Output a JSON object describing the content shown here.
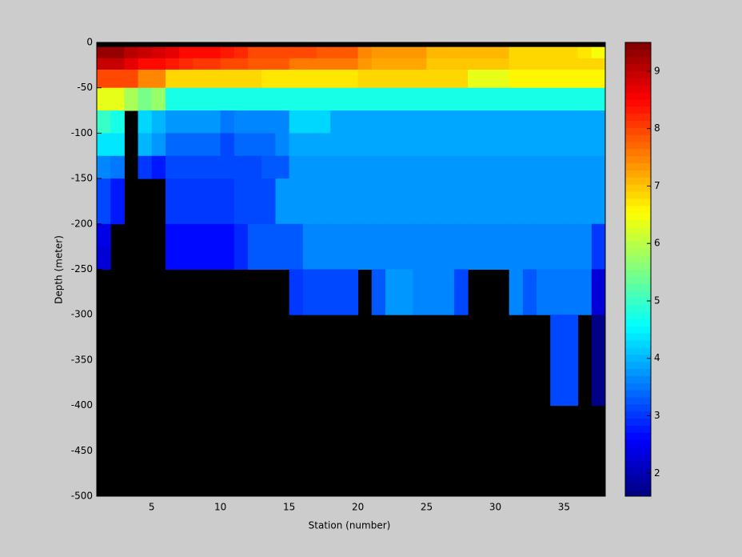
{
  "chart_data": {
    "type": "heatmap",
    "colormap": "jet",
    "x_label": "Station (number)",
    "y_label": "Depth (meter)",
    "xlim": [
      1,
      38
    ],
    "ylim": [
      -500,
      0
    ],
    "xticks": [
      5,
      10,
      15,
      20,
      25,
      30,
      35
    ],
    "yticks": [
      0,
      -50,
      -100,
      -150,
      -200,
      -250,
      -300,
      -350,
      -400,
      -450,
      -500
    ],
    "clim": [
      1.6,
      9.5
    ],
    "cticks": [
      2,
      3,
      4,
      5,
      6,
      7,
      8,
      9
    ],
    "x_edges": [
      1,
      2,
      3,
      4,
      5,
      6,
      7,
      8,
      9,
      10,
      11,
      12,
      13,
      14,
      15,
      16,
      17,
      18,
      19,
      20,
      21,
      22,
      23,
      24,
      25,
      26,
      27,
      28,
      29,
      30,
      31,
      32,
      33,
      34,
      35,
      36,
      37,
      38
    ],
    "y_edges": [
      0,
      -5,
      -17.5,
      -30,
      -50,
      -75,
      -100,
      -125,
      -150,
      -175,
      -200,
      -225,
      -250,
      -300,
      -400,
      -500
    ],
    "z": [
      [
        null,
        null,
        null,
        null,
        null,
        null,
        null,
        null,
        null,
        null,
        null,
        null,
        null,
        null,
        null,
        null,
        null,
        null,
        null,
        null,
        null,
        null,
        null,
        null,
        null,
        null,
        null,
        null,
        null,
        null,
        null,
        null,
        null,
        null,
        null,
        null,
        null
      ],
      [
        9.3,
        9.3,
        9.1,
        8.9,
        8.8,
        8.7,
        8.5,
        8.5,
        8.5,
        8.3,
        8.2,
        8.0,
        8.0,
        8.0,
        8.0,
        8.0,
        7.8,
        7.8,
        7.8,
        7.5,
        7.3,
        7.3,
        7.3,
        7.3,
        7.1,
        7.1,
        7.1,
        7.1,
        7.1,
        7.1,
        6.9,
        6.9,
        6.9,
        6.9,
        6.9,
        6.7,
        6.5
      ],
      [
        9.0,
        8.9,
        8.7,
        8.5,
        8.4,
        8.3,
        8.2,
        8.1,
        8.1,
        8.0,
        7.9,
        7.8,
        7.8,
        7.8,
        7.6,
        7.6,
        7.6,
        7.6,
        7.6,
        7.4,
        7.2,
        7.2,
        7.2,
        7.2,
        7.0,
        7.0,
        7.0,
        7.0,
        7.0,
        7.0,
        6.8,
        6.8,
        6.8,
        6.8,
        6.8,
        6.8,
        6.8
      ],
      [
        8.0,
        8.0,
        8.0,
        7.5,
        7.5,
        6.9,
        6.9,
        6.9,
        6.9,
        6.9,
        6.9,
        6.9,
        6.7,
        6.7,
        6.7,
        6.7,
        6.7,
        6.7,
        6.7,
        6.9,
        6.9,
        6.9,
        6.9,
        6.9,
        6.9,
        6.9,
        6.9,
        6.3,
        6.3,
        6.3,
        6.6,
        6.6,
        6.6,
        6.6,
        6.6,
        6.6,
        6.6
      ],
      [
        6.3,
        6.3,
        5.9,
        5.5,
        5.7,
        4.8,
        4.8,
        4.7,
        4.7,
        4.7,
        4.7,
        4.7,
        4.7,
        4.7,
        4.7,
        4.7,
        4.7,
        4.7,
        4.7,
        4.7,
        4.7,
        4.7,
        4.7,
        4.7,
        4.7,
        4.7,
        4.7,
        4.7,
        4.7,
        4.7,
        4.7,
        4.7,
        4.7,
        4.7,
        4.7,
        4.7,
        4.7
      ],
      [
        5.0,
        4.7,
        null,
        4.3,
        4.0,
        3.7,
        3.7,
        3.7,
        3.7,
        3.5,
        3.6,
        3.6,
        3.6,
        3.6,
        4.2,
        4.2,
        4.2,
        3.9,
        3.9,
        3.9,
        3.9,
        3.9,
        3.9,
        3.9,
        3.9,
        3.9,
        3.9,
        3.9,
        3.9,
        3.9,
        3.9,
        3.9,
        3.9,
        3.9,
        3.9,
        3.9,
        3.9
      ],
      [
        4.4,
        4.4,
        null,
        4.0,
        3.7,
        3.4,
        3.4,
        3.4,
        3.4,
        3.2,
        3.4,
        3.4,
        3.4,
        3.6,
        3.9,
        3.9,
        3.9,
        3.9,
        3.9,
        3.9,
        3.9,
        3.9,
        3.9,
        3.9,
        3.9,
        3.9,
        3.9,
        3.9,
        3.9,
        3.9,
        3.9,
        3.9,
        3.9,
        3.9,
        3.9,
        3.9,
        3.9
      ],
      [
        3.6,
        3.5,
        null,
        3.0,
        2.8,
        3.2,
        3.2,
        3.2,
        3.2,
        3.2,
        3.2,
        3.2,
        3.3,
        3.3,
        3.8,
        3.8,
        3.8,
        3.8,
        3.8,
        3.8,
        3.8,
        3.8,
        3.8,
        3.8,
        3.8,
        3.8,
        3.8,
        3.8,
        3.8,
        3.8,
        3.8,
        3.8,
        3.8,
        3.8,
        3.8,
        3.8,
        3.8
      ],
      [
        3.1,
        2.8,
        null,
        null,
        null,
        3.0,
        3.0,
        3.0,
        3.0,
        3.0,
        3.2,
        3.2,
        3.2,
        3.8,
        3.8,
        3.8,
        3.8,
        3.8,
        3.8,
        3.8,
        3.8,
        3.8,
        3.8,
        3.8,
        3.8,
        3.8,
        3.8,
        3.8,
        3.8,
        3.8,
        3.8,
        3.8,
        3.8,
        3.8,
        3.8,
        3.8,
        3.8
      ],
      [
        3.1,
        2.8,
        null,
        null,
        null,
        3.0,
        3.0,
        3.0,
        3.0,
        3.0,
        3.2,
        3.2,
        3.2,
        3.8,
        3.8,
        3.8,
        3.8,
        3.8,
        3.8,
        3.8,
        3.8,
        3.8,
        3.8,
        3.8,
        3.8,
        3.8,
        3.8,
        3.8,
        3.8,
        3.8,
        3.8,
        3.8,
        3.8,
        3.8,
        3.8,
        3.8,
        3.8
      ],
      [
        2.4,
        null,
        null,
        null,
        null,
        2.7,
        2.7,
        2.7,
        2.7,
        2.7,
        2.9,
        3.3,
        3.3,
        3.3,
        3.3,
        3.6,
        3.6,
        3.6,
        3.6,
        3.6,
        3.6,
        3.6,
        3.6,
        3.6,
        3.6,
        3.6,
        3.6,
        3.6,
        3.6,
        3.6,
        3.6,
        3.6,
        3.6,
        3.6,
        3.6,
        3.6,
        3.0
      ],
      [
        2.3,
        null,
        null,
        null,
        null,
        2.7,
        2.7,
        2.7,
        2.7,
        2.7,
        2.9,
        3.3,
        3.3,
        3.3,
        3.3,
        3.6,
        3.6,
        3.6,
        3.6,
        3.6,
        3.6,
        3.6,
        3.6,
        3.6,
        3.6,
        3.6,
        3.6,
        3.6,
        3.6,
        3.6,
        3.6,
        3.6,
        3.6,
        3.6,
        3.6,
        3.6,
        3.0
      ],
      [
        null,
        null,
        null,
        null,
        null,
        null,
        null,
        null,
        null,
        null,
        null,
        null,
        null,
        null,
        3.0,
        3.2,
        3.2,
        3.2,
        3.2,
        null,
        3.3,
        3.7,
        3.7,
        3.6,
        3.6,
        3.6,
        3.2,
        null,
        null,
        null,
        3.6,
        3.3,
        3.5,
        3.5,
        3.5,
        3.5,
        2.3
      ],
      [
        null,
        null,
        null,
        null,
        null,
        null,
        null,
        null,
        null,
        null,
        null,
        null,
        null,
        null,
        null,
        null,
        null,
        null,
        null,
        null,
        null,
        null,
        null,
        null,
        null,
        null,
        null,
        null,
        null,
        null,
        null,
        null,
        null,
        3.1,
        3.1,
        null,
        1.7
      ],
      [
        null,
        null,
        null,
        null,
        null,
        null,
        null,
        null,
        null,
        null,
        null,
        null,
        null,
        null,
        null,
        null,
        null,
        null,
        null,
        null,
        null,
        null,
        null,
        null,
        null,
        null,
        null,
        null,
        null,
        null,
        null,
        null,
        null,
        null,
        null,
        null,
        null
      ]
    ]
  }
}
